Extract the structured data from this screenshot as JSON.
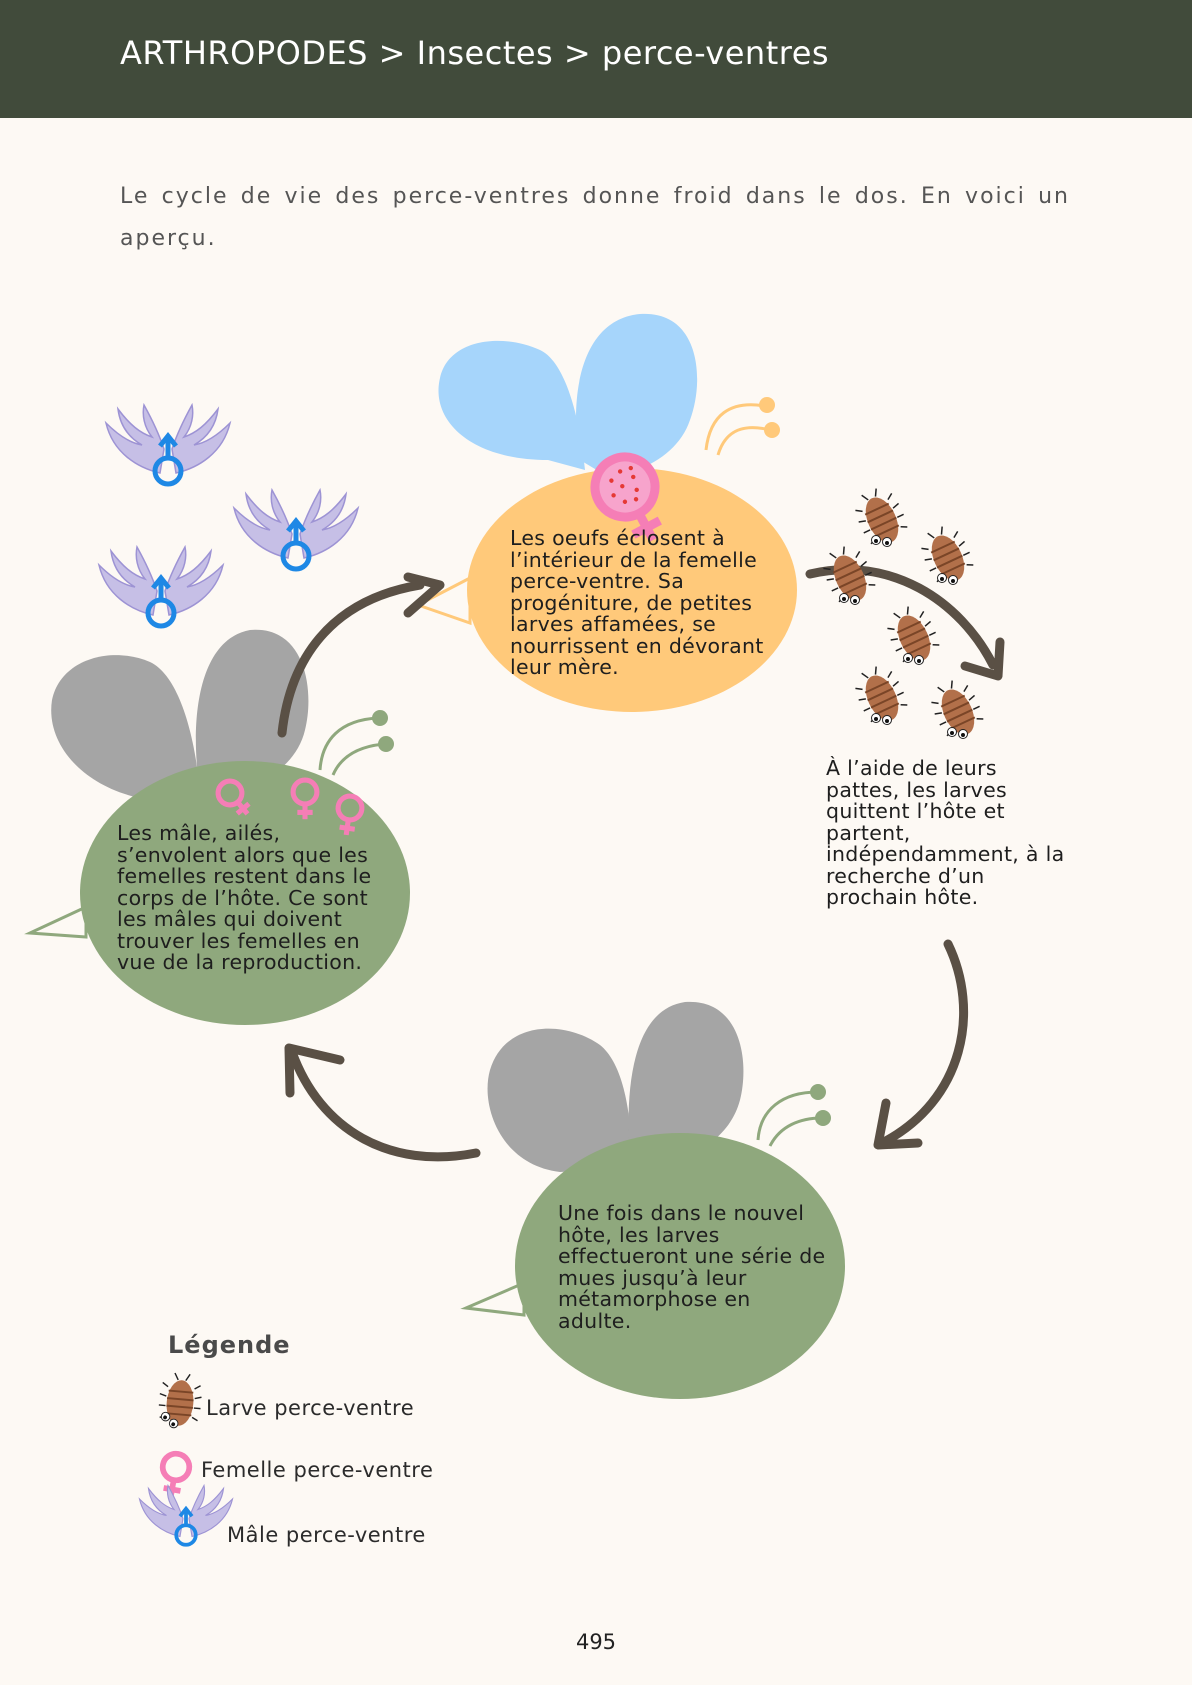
{
  "header": {
    "breadcrumb": "ARTHROPODES > Insectes > perce-ventres"
  },
  "intro": "Le cycle de vie des perce-ventres donne froid dans le dos. En voici un aperçu.",
  "steps": [
    {
      "id": "eclosion",
      "text": "Les oeufs éclosent à l’intérieur de la femelle perce-ventre. Sa progéniture, de petites larves affamées, se nourrissent en dévorant leur mère."
    },
    {
      "id": "depart",
      "text": "À l’aide de leurs pattes, les larves quittent l’hôte et partent, indépendamment, à la recherche d’un prochain hôte."
    },
    {
      "id": "mue",
      "text": "Une fois dans le nouvel hôte, les larves effectueront une série de mues jusqu’à leur métamorphose en adulte."
    },
    {
      "id": "envol",
      "text": "Les mâle, ailés, s’envolent alors que les femelles restent dans le corps de l’hôte. Ce sont les mâles qui doivent trouver les femelles en vue de la reproduction."
    }
  ],
  "legend": {
    "title": "Légende",
    "items": [
      {
        "icon": "larva-icon",
        "label": "Larve perce-ventre"
      },
      {
        "icon": "female-symbol-icon",
        "label": "Femelle perce-ventre"
      },
      {
        "icon": "winged-male-icon",
        "label": "Mâle perce-ventre"
      }
    ]
  },
  "page_number": "495",
  "colors": {
    "header_bg": "#414b3b",
    "page_bg": "#fdf9f4",
    "orange_body": "#ffc97a",
    "green_body": "#8fa87d",
    "blue_wing": "#a6d5fb",
    "gray_wing": "#a5a5a5",
    "arrow": "#5a5045",
    "female_pink": "#f57eb6",
    "male_blue": "#1e88e5",
    "larva_brown": "#b2704a"
  }
}
